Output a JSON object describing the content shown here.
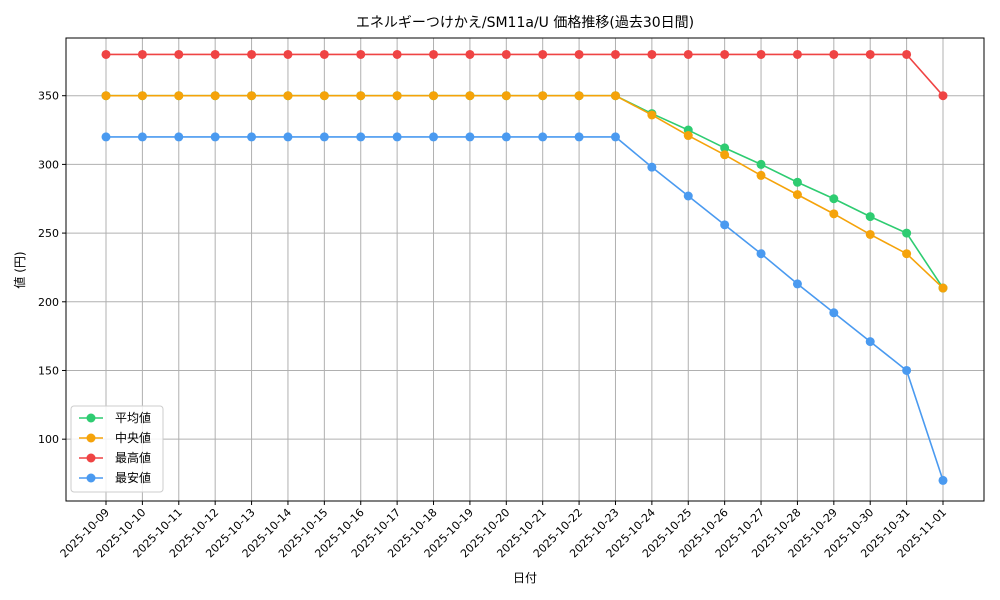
{
  "chart_data": {
    "type": "line",
    "title": "エネルギーつけかえ/SM11a/U 価格推移(過去30日間)",
    "xlabel": "日付",
    "ylabel": "値 (円)",
    "ylim": [
      55,
      392
    ],
    "yticks": [
      100,
      150,
      200,
      250,
      300,
      350
    ],
    "grid": true,
    "legend_position": "lower-left",
    "categories": [
      "2025-10-09",
      "2025-10-10",
      "2025-10-11",
      "2025-10-12",
      "2025-10-13",
      "2025-10-14",
      "2025-10-15",
      "2025-10-16",
      "2025-10-17",
      "2025-10-18",
      "2025-10-19",
      "2025-10-20",
      "2025-10-21",
      "2025-10-22",
      "2025-10-23",
      "2025-10-24",
      "2025-10-25",
      "2025-10-26",
      "2025-10-27",
      "2025-10-28",
      "2025-10-29",
      "2025-10-30",
      "2025-10-31",
      "2025-11-01"
    ],
    "series": [
      {
        "name": "平均値",
        "color": "#2ecc71",
        "values": [
          350,
          350,
          350,
          350,
          350,
          350,
          350,
          350,
          350,
          350,
          350,
          350,
          350,
          350,
          350,
          337,
          325,
          312,
          300,
          287,
          275,
          262,
          250,
          210
        ]
      },
      {
        "name": "中央値",
        "color": "#f5a30a",
        "values": [
          350,
          350,
          350,
          350,
          350,
          350,
          350,
          350,
          350,
          350,
          350,
          350,
          350,
          350,
          350,
          336,
          321,
          307,
          292,
          278,
          264,
          249,
          235,
          210
        ]
      },
      {
        "name": "最高値",
        "color": "#ef4444",
        "values": [
          380,
          380,
          380,
          380,
          380,
          380,
          380,
          380,
          380,
          380,
          380,
          380,
          380,
          380,
          380,
          380,
          380,
          380,
          380,
          380,
          380,
          380,
          380,
          350
        ]
      },
      {
        "name": "最安値",
        "color": "#4a9af0",
        "values": [
          320,
          320,
          320,
          320,
          320,
          320,
          320,
          320,
          320,
          320,
          320,
          320,
          320,
          320,
          320,
          298,
          277,
          256,
          235,
          213,
          192,
          171,
          150,
          70
        ]
      }
    ]
  }
}
